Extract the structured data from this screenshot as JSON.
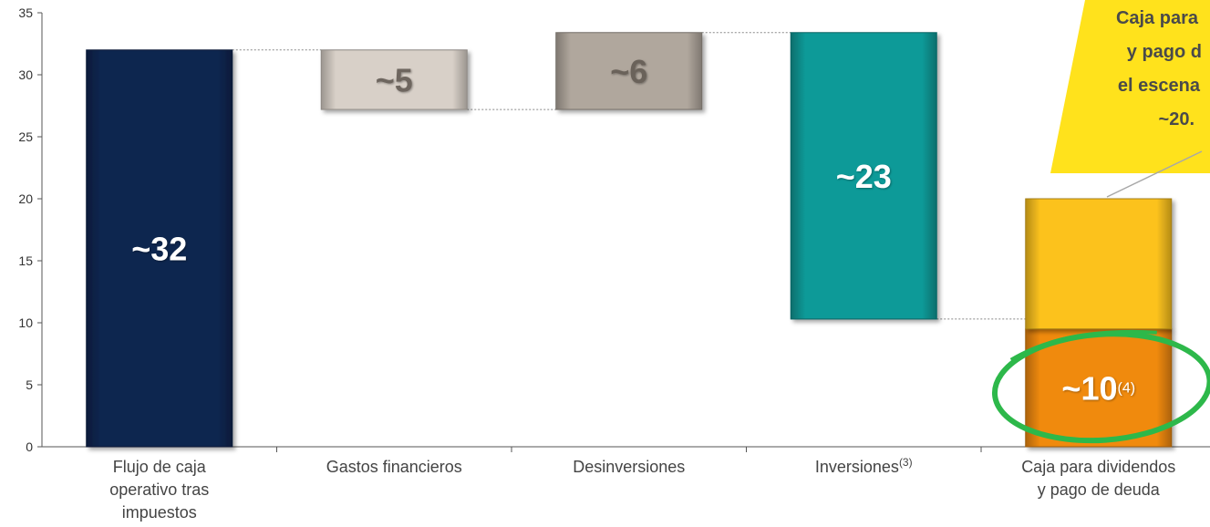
{
  "chart_data": {
    "type": "bar",
    "subtype": "waterfall",
    "ylim": [
      0,
      35
    ],
    "y_ticks": [
      0,
      5,
      10,
      15,
      20,
      25,
      30,
      35
    ],
    "grid": false,
    "categories": [
      "Flujo de caja operativo tras impuestos",
      "Gastos financieros",
      "Desinversiones",
      "Inversiones",
      "Caja para dividendos y pago de deuda"
    ],
    "bars": [
      {
        "category": "Flujo de caja operativo tras impuestos",
        "start": 0,
        "end": 32,
        "label": "~32",
        "color": "#0a2650",
        "label_color": "#ffffff"
      },
      {
        "category": "Gastos financieros",
        "start": 32,
        "end": 27.2,
        "label": "~5",
        "color": "#d8d0c8",
        "label_color": "#6e665e"
      },
      {
        "category": "Desinversiones",
        "start": 27.2,
        "end": 33.4,
        "label": "~6",
        "color": "#b0a79d",
        "label_color": "#6a625a"
      },
      {
        "category": "Inversiones",
        "start": 33.4,
        "end": 10.3,
        "label": "~23",
        "color": "#0a9a98",
        "label_color": "#ffffff"
      },
      {
        "category": "Caja para dividendos y pago de deuda",
        "start": 0,
        "end": 20,
        "label": "",
        "color": "#fcc21f",
        "label_color": "#ffffff",
        "segments": [
          {
            "start": 0,
            "end": 9.5,
            "label": "~10",
            "superscript": "(4)",
            "color": "#f08a0a",
            "label_color": "#ffffff"
          },
          {
            "start": 9.5,
            "end": 20,
            "label": "",
            "color": "#fcc21f"
          }
        ]
      }
    ],
    "annotation": {
      "lines": [
        "Caja para",
        "y pago d",
        "el escena",
        "~20."
      ],
      "color": "#ffe21c"
    },
    "highlight": {
      "target": "~10",
      "color": "#2db84a"
    }
  },
  "xlabels": [
    {
      "lines": [
        "Flujo de caja",
        "operativo tras",
        "impuestos"
      ],
      "sup": ""
    },
    {
      "lines": [
        "Gastos financieros"
      ],
      "sup": ""
    },
    {
      "lines": [
        "Desinversiones"
      ],
      "sup": ""
    },
    {
      "lines": [
        "Inversiones"
      ],
      "sup": "(3)"
    },
    {
      "lines": [
        "Caja para dividendos",
        "y pago de deuda"
      ],
      "sup": ""
    }
  ]
}
